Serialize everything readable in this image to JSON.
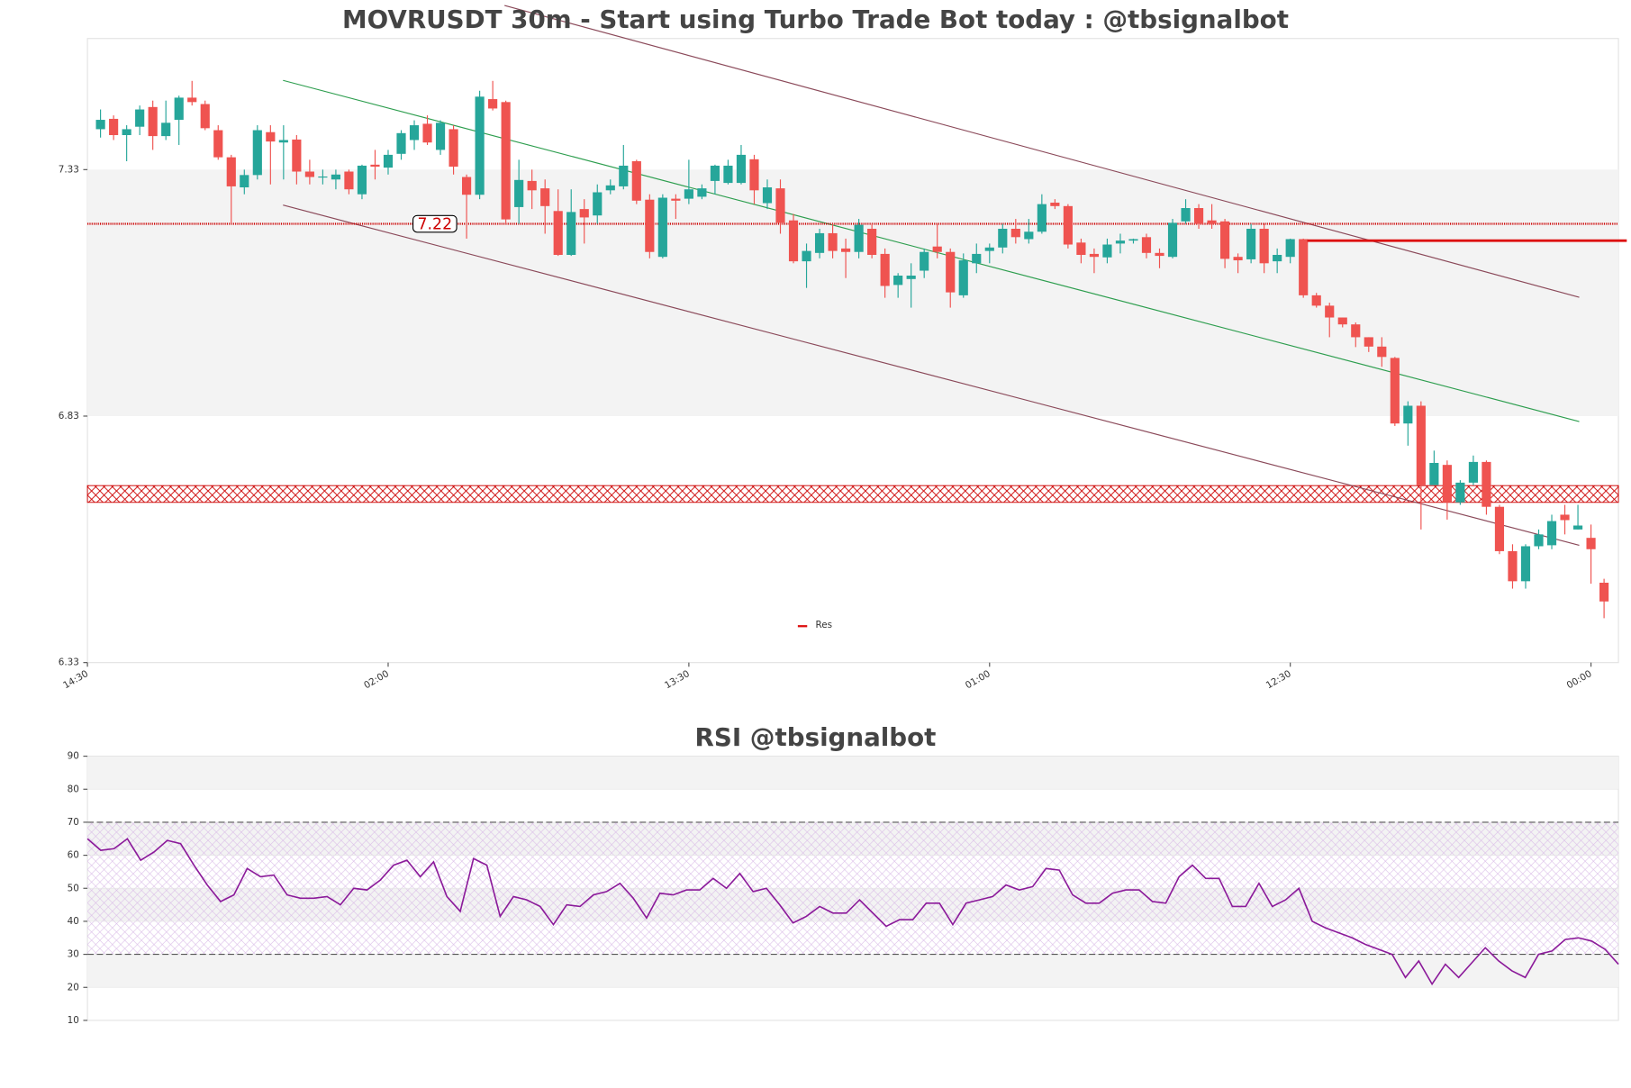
{
  "chart_data": [
    {
      "type": "candlestick",
      "title": "MOVRUSDT 30m - Start using Turbo Trade Bot today : @tbsignalbot",
      "up_color": "#26a69a",
      "down_color": "#ef5350",
      "x": [
        1,
        2,
        3,
        4,
        5,
        6,
        7,
        8,
        9,
        10,
        11,
        12,
        13,
        14,
        15,
        16,
        17,
        18,
        19,
        20,
        21,
        22,
        23,
        24,
        25,
        26,
        27,
        28,
        29,
        30,
        31,
        32,
        33,
        34,
        35,
        36,
        37,
        38,
        39,
        40,
        41,
        42,
        43,
        44,
        45,
        46,
        47,
        48,
        49,
        50,
        51,
        52,
        53,
        54,
        55,
        56,
        57,
        58,
        59,
        60,
        61,
        62,
        63,
        64,
        65,
        66,
        67,
        68,
        69,
        70,
        71,
        72,
        73,
        74,
        75,
        76,
        77,
        78,
        79,
        80,
        81,
        82,
        83,
        84,
        85,
        86,
        87,
        88,
        89,
        90,
        91,
        92,
        93,
        94,
        95,
        96,
        97,
        98,
        99,
        100,
        101,
        102,
        103,
        104,
        105,
        106,
        107,
        108,
        109,
        110,
        111,
        112,
        113,
        114,
        115,
        116
      ],
      "open": [
        7.412,
        7.433,
        7.4,
        7.417,
        7.457,
        7.398,
        7.431,
        7.476,
        7.463,
        7.41,
        7.355,
        7.294,
        7.319,
        7.406,
        7.385,
        7.391,
        7.326,
        7.314,
        7.31,
        7.326,
        7.28,
        7.34,
        7.334,
        7.362,
        7.39,
        7.423,
        7.37,
        7.412,
        7.315,
        7.279,
        7.473,
        7.467,
        7.254,
        7.307,
        7.292,
        7.246,
        7.157,
        7.25,
        7.237,
        7.288,
        7.296,
        7.347,
        7.269,
        7.153,
        7.271,
        7.271,
        7.275,
        7.307,
        7.303,
        7.303,
        7.351,
        7.262,
        7.292,
        7.227,
        7.144,
        7.161,
        7.201,
        7.17,
        7.163,
        7.21,
        7.159,
        7.096,
        7.108,
        7.125,
        7.174,
        7.163,
        7.075,
        7.14,
        7.165,
        7.172,
        7.21,
        7.189,
        7.204,
        7.263,
        7.256,
        7.182,
        7.159,
        7.152,
        7.18,
        7.186,
        7.193,
        7.161,
        7.153,
        7.225,
        7.252,
        7.227,
        7.225,
        7.153,
        7.148,
        7.21,
        7.144,
        7.153,
        7.189,
        7.075,
        7.054,
        7.03,
        7.016,
        6.99,
        6.971,
        6.948,
        6.815,
        6.851,
        6.69,
        6.731,
        6.655,
        6.695,
        6.737,
        6.646,
        6.556,
        6.495,
        6.566,
        6.568,
        6.63,
        6.6,
        6.583,
        6.492
      ],
      "high": [
        7.452,
        7.44,
        7.42,
        7.46,
        7.47,
        7.47,
        7.48,
        7.51,
        7.47,
        7.42,
        7.36,
        7.33,
        7.42,
        7.42,
        7.42,
        7.4,
        7.35,
        7.33,
        7.33,
        7.33,
        7.34,
        7.37,
        7.37,
        7.41,
        7.43,
        7.44,
        7.43,
        7.42,
        7.32,
        7.49,
        7.51,
        7.47,
        7.35,
        7.33,
        7.31,
        7.29,
        7.29,
        7.27,
        7.3,
        7.31,
        7.38,
        7.35,
        7.28,
        7.28,
        7.28,
        7.35,
        7.3,
        7.34,
        7.35,
        7.38,
        7.36,
        7.31,
        7.31,
        7.24,
        7.18,
        7.21,
        7.22,
        7.19,
        7.23,
        7.22,
        7.17,
        7.12,
        7.14,
        7.17,
        7.22,
        7.17,
        7.16,
        7.18,
        7.18,
        7.22,
        7.23,
        7.23,
        7.28,
        7.27,
        7.26,
        7.19,
        7.17,
        7.19,
        7.2,
        7.19,
        7.2,
        7.17,
        7.23,
        7.27,
        7.26,
        7.26,
        7.23,
        7.16,
        7.22,
        7.22,
        7.17,
        7.19,
        7.19,
        7.08,
        7.06,
        7.03,
        7.02,
        6.99,
        6.99,
        6.95,
        6.86,
        6.86,
        6.76,
        6.74,
        6.7,
        6.75,
        6.74,
        6.65,
        6.57,
        6.57,
        6.6,
        6.63,
        6.65,
        6.65,
        6.61,
        6.5
      ],
      "low": [
        7.395,
        7.39,
        7.347,
        7.4,
        7.37,
        7.39,
        7.38,
        7.46,
        7.41,
        7.35,
        7.22,
        7.28,
        7.31,
        7.3,
        7.31,
        7.3,
        7.3,
        7.3,
        7.29,
        7.28,
        7.27,
        7.31,
        7.32,
        7.35,
        7.37,
        7.38,
        7.36,
        7.32,
        7.19,
        7.27,
        7.45,
        7.22,
        7.22,
        7.25,
        7.2,
        7.155,
        7.155,
        7.18,
        7.22,
        7.28,
        7.29,
        7.26,
        7.15,
        7.15,
        7.23,
        7.26,
        7.27,
        7.28,
        7.3,
        7.3,
        7.26,
        7.25,
        7.2,
        7.14,
        7.09,
        7.15,
        7.15,
        7.11,
        7.15,
        7.15,
        7.07,
        7.07,
        7.05,
        7.11,
        7.15,
        7.05,
        7.07,
        7.12,
        7.14,
        7.16,
        7.18,
        7.18,
        7.2,
        7.25,
        7.17,
        7.14,
        7.12,
        7.14,
        7.16,
        7.18,
        7.15,
        7.13,
        7.15,
        7.22,
        7.21,
        7.21,
        7.13,
        7.12,
        7.14,
        7.12,
        7.12,
        7.14,
        7.07,
        7.05,
        6.99,
        7.01,
        6.97,
        6.96,
        6.93,
        6.81,
        6.77,
        6.6,
        6.69,
        6.62,
        6.65,
        6.69,
        6.63,
        6.55,
        6.48,
        6.48,
        6.56,
        6.56,
        6.59,
        6.6,
        6.49,
        6.42
      ],
      "close": [
        7.431,
        7.4,
        7.412,
        7.452,
        7.398,
        7.425,
        7.476,
        7.467,
        7.414,
        7.355,
        7.296,
        7.319,
        7.41,
        7.387,
        7.39,
        7.326,
        7.315,
        7.316,
        7.32,
        7.29,
        7.338,
        7.336,
        7.36,
        7.404,
        7.42,
        7.385,
        7.425,
        7.336,
        7.279,
        7.478,
        7.454,
        7.229,
        7.309,
        7.288,
        7.256,
        7.157,
        7.244,
        7.233,
        7.284,
        7.298,
        7.338,
        7.267,
        7.163,
        7.273,
        7.267,
        7.29,
        7.292,
        7.338,
        7.338,
        7.36,
        7.288,
        7.294,
        7.222,
        7.144,
        7.165,
        7.201,
        7.165,
        7.163,
        7.218,
        7.157,
        7.094,
        7.115,
        7.115,
        7.163,
        7.163,
        7.081,
        7.146,
        7.159,
        7.172,
        7.21,
        7.193,
        7.204,
        7.26,
        7.256,
        7.178,
        7.157,
        7.153,
        7.178,
        7.186,
        7.189,
        7.161,
        7.155,
        7.222,
        7.252,
        7.22,
        7.22,
        7.149,
        7.146,
        7.21,
        7.14,
        7.157,
        7.189,
        7.075,
        7.054,
        7.03,
        7.016,
        6.99,
        6.971,
        6.95,
        6.815,
        6.851,
        6.69,
        6.735,
        6.655,
        6.695,
        6.737,
        6.646,
        6.556,
        6.495,
        6.566,
        6.59,
        6.617,
        6.619,
        6.608,
        6.56,
        6.454
      ],
      "xlim": [
        0,
        117.1
      ],
      "xticks": [
        {
          "value": 0,
          "label": "14:30"
        },
        {
          "value": 23,
          "label": "02:00"
        },
        {
          "value": 46,
          "label": "13:30"
        },
        {
          "value": 69,
          "label": "01:00"
        },
        {
          "value": 92,
          "label": "12:30"
        },
        {
          "value": 115,
          "label": "00:00"
        }
      ],
      "ylim": [
        6.33,
        7.596
      ],
      "yticks": [
        6.33,
        6.83,
        7.33
      ],
      "band": {
        "range": [
          6.83,
          7.33
        ],
        "color": "#f3f3f3"
      },
      "zone": {
        "range": [
          6.655,
          6.689
        ],
        "color": "#cc0000"
      },
      "price_line": {
        "value": 7.22,
        "color": "#cc0000"
      },
      "resistance": {
        "name": "Res",
        "color": "#dd1111",
        "x": [
          93.3,
          117.1
        ],
        "values": [
          7.186,
          7.186
        ]
      },
      "trendlines": [
        {
          "color": "#2e9e4f",
          "x": [
            14.96,
            114.1
          ],
          "values": [
            7.511,
            6.819
          ]
        },
        {
          "color": "#8b4a5a",
          "x": [
            31.9,
            114.1
          ],
          "values": [
            7.663,
            7.071
          ]
        },
        {
          "color": "#8b4a5a",
          "x": [
            14.96,
            114.1
          ],
          "values": [
            7.258,
            6.568
          ]
        }
      ]
    },
    {
      "type": "line",
      "title": "RSI @tbsignalbot",
      "color": "#8b1a9a",
      "x": [
        1,
        2,
        3,
        4,
        5,
        6,
        7,
        8,
        9,
        10,
        11,
        12,
        13,
        14,
        15,
        16,
        17,
        18,
        19,
        20,
        21,
        22,
        23,
        24,
        25,
        26,
        27,
        28,
        29,
        30,
        31,
        32,
        33,
        34,
        35,
        36,
        37,
        38,
        39,
        40,
        41,
        42,
        43,
        44,
        45,
        46,
        47,
        48,
        49,
        50,
        51,
        52,
        53,
        54,
        55,
        56,
        57,
        58,
        59,
        60,
        61,
        62,
        63,
        64,
        65,
        66,
        67,
        68,
        69,
        70,
        71,
        72,
        73,
        74,
        75,
        76,
        77,
        78,
        79,
        80,
        81,
        82,
        83,
        84,
        85,
        86,
        87,
        88,
        89,
        90,
        91,
        92,
        93,
        94,
        95,
        96,
        97,
        98,
        99,
        100,
        101,
        102,
        103,
        104,
        105,
        106,
        107,
        108,
        109,
        110,
        111,
        112,
        113,
        114,
        115,
        116
      ],
      "values": [
        65,
        61.5,
        62,
        65,
        58.5,
        61,
        64.5,
        63.5,
        57,
        51,
        46,
        48,
        56,
        53.5,
        54,
        48,
        47,
        47,
        47.5,
        45,
        50,
        49.5,
        52.5,
        57,
        58.5,
        53.5,
        58,
        47.5,
        43,
        59,
        57,
        41.5,
        47.5,
        46.5,
        44.5,
        39,
        45,
        44.5,
        48,
        49,
        51.5,
        47,
        41,
        48.5,
        48,
        49.5,
        49.5,
        53,
        50,
        54.5,
        49,
        50,
        45,
        39.5,
        41.5,
        44.5,
        42.5,
        42.5,
        46.5,
        42.5,
        38.5,
        40.5,
        40.5,
        45.5,
        45.5,
        39,
        45.5,
        46.5,
        47.5,
        51,
        49.5,
        50.5,
        56,
        55.5,
        48,
        45.5,
        45.5,
        48.5,
        49.5,
        49.5,
        46,
        45.5,
        53.5,
        57,
        53,
        53,
        44.5,
        44.5,
        51.5,
        44.5,
        46.5,
        50,
        40,
        38,
        36.5,
        35,
        33,
        31.5,
        30,
        23,
        28,
        21,
        27,
        23,
        27.5,
        32,
        28,
        25,
        23,
        30,
        31,
        34.5,
        35,
        34,
        31.5,
        27
      ],
      "xlim": [
        1,
        116
      ],
      "ylim": [
        10,
        90
      ],
      "yticks": [
        10,
        20,
        30,
        40,
        50,
        60,
        70,
        80,
        90
      ],
      "hlines": [
        70,
        30
      ],
      "bands": [
        [
          80,
          90
        ],
        [
          60,
          70
        ],
        [
          40,
          50
        ],
        [
          20,
          30
        ]
      ],
      "band_color": "#f3f3f3",
      "zone": {
        "range": [
          30,
          70
        ],
        "color": "#c9a0d8"
      }
    }
  ]
}
